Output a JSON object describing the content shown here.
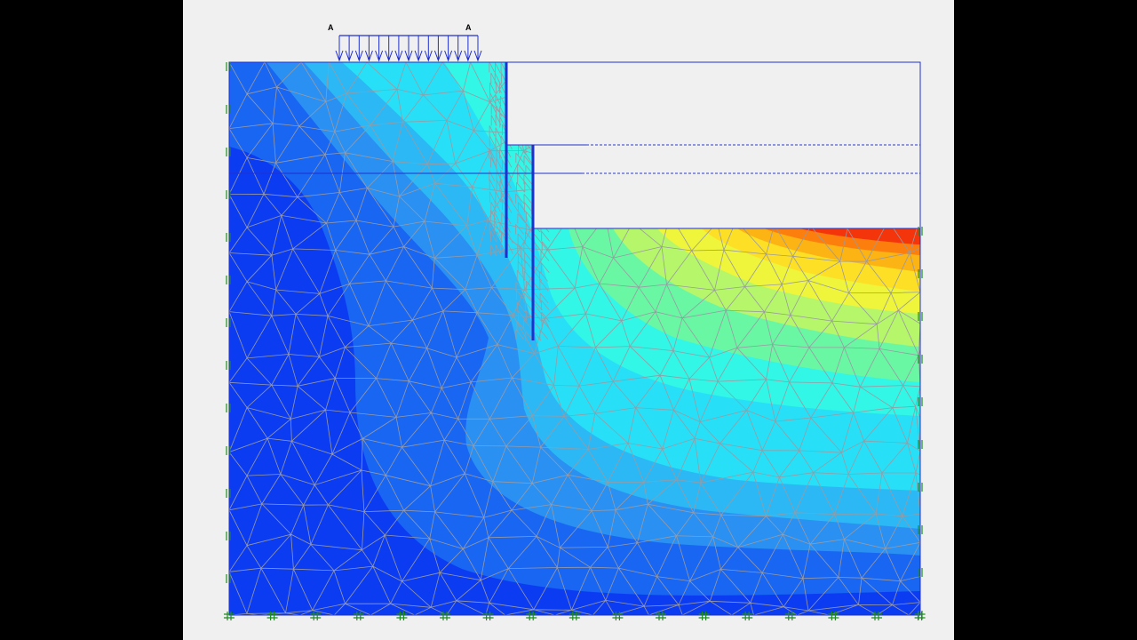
{
  "figure": {
    "load_label_left": "A",
    "load_label_right": "A",
    "contour_colors": [
      "#0c3cf2",
      "#1866f2",
      "#2a90f2",
      "#2cb8f5",
      "#27e0f8",
      "#32f6e6",
      "#6af7a4",
      "#b6f66a",
      "#eef53a",
      "#fde026",
      "#fcb314",
      "#fc7e0c",
      "#f4350c"
    ],
    "mesh_color": "#9a9aa2",
    "wall_color": "#1f2fd0",
    "fixity_color": "#1e8c1e"
  }
}
